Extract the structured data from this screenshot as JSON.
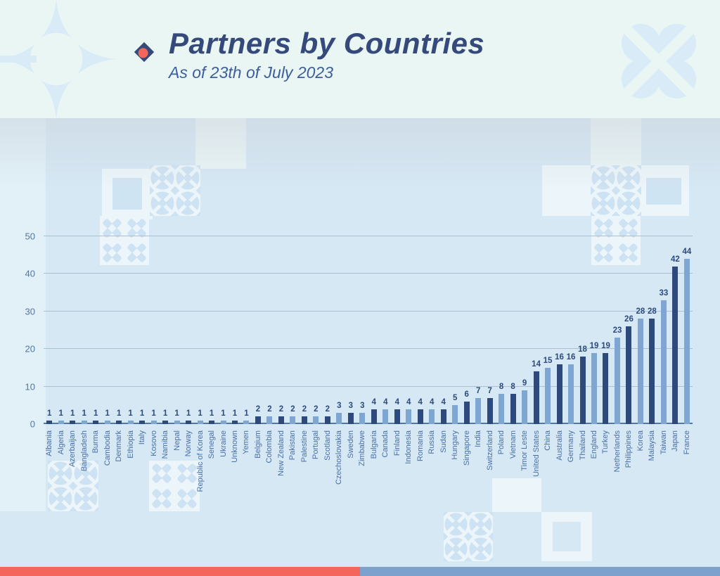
{
  "header": {
    "title": "Partners by Countries",
    "subtitle": "As of 23th of July 2023"
  },
  "chart_data": {
    "type": "bar",
    "title": "Partners by Countries",
    "subtitle": "As of 23th of July 2023",
    "xlabel": "",
    "ylabel": "",
    "ylim": [
      0,
      50
    ],
    "yticks": [
      0,
      10,
      20,
      30,
      40,
      50
    ],
    "grid": true,
    "legend": "none",
    "categories": [
      "Albania",
      "Algeria",
      "Azerbaijan",
      "Bangladesh",
      "Burma",
      "Cambodia",
      "Denmark",
      "Ethiopia",
      "Italy",
      "Kosovo",
      "Namibia",
      "Nepal",
      "Norway",
      "Republic of Korea",
      "Senegal",
      "Ukraine",
      "Unknown",
      "Yemen",
      "Belgium",
      "Colombia",
      "New Zealand",
      "Pakistan",
      "Palestine",
      "Portugal",
      "Scotland",
      "Czechoslovakia",
      "Sweden",
      "Zimbabwe",
      "Bulgaria",
      "Canada",
      "Finland",
      "Indonesia",
      "Romania",
      "Russia",
      "Sudan",
      "Hungary",
      "Singapore",
      "India",
      "Switzerland",
      "Poland",
      "Vietnam",
      "Timor Leste",
      "United States",
      "China",
      "Australia",
      "Germany",
      "Thailand",
      "England",
      "Turkey",
      "Netherlands",
      "Philippines",
      "Korea",
      "Malaysia",
      "Taiwan",
      "Japan",
      "France"
    ],
    "values": [
      1,
      1,
      1,
      1,
      1,
      1,
      1,
      1,
      1,
      1,
      1,
      1,
      1,
      1,
      1,
      1,
      1,
      1,
      2,
      2,
      2,
      2,
      2,
      2,
      2,
      3,
      3,
      3,
      4,
      4,
      4,
      4,
      4,
      4,
      4,
      5,
      6,
      7,
      7,
      8,
      8,
      9,
      14,
      15,
      16,
      16,
      18,
      19,
      19,
      23,
      26,
      28,
      28,
      33,
      42,
      44
    ],
    "bar_color_dark": "#2e4a7c",
    "bar_color_light": "#7fa6d3",
    "value_label_color": "#2e4a7c",
    "axis_tick_color": "#54759d",
    "category_label_color": "#4a6fa8"
  },
  "colors": {
    "top_band_bg": "#e9f6f4",
    "chart_bg": "#d5e8f4",
    "title": "#35497b",
    "subtitle": "#3d5e9b",
    "accent_red": "#f4655c",
    "footer_left": "#f4655c",
    "footer_right": "#7ba1cc",
    "decor_blue": "#d9ebf7",
    "pattern_blue": "#cde2f2",
    "pattern_bg": "#ecf6fa"
  }
}
